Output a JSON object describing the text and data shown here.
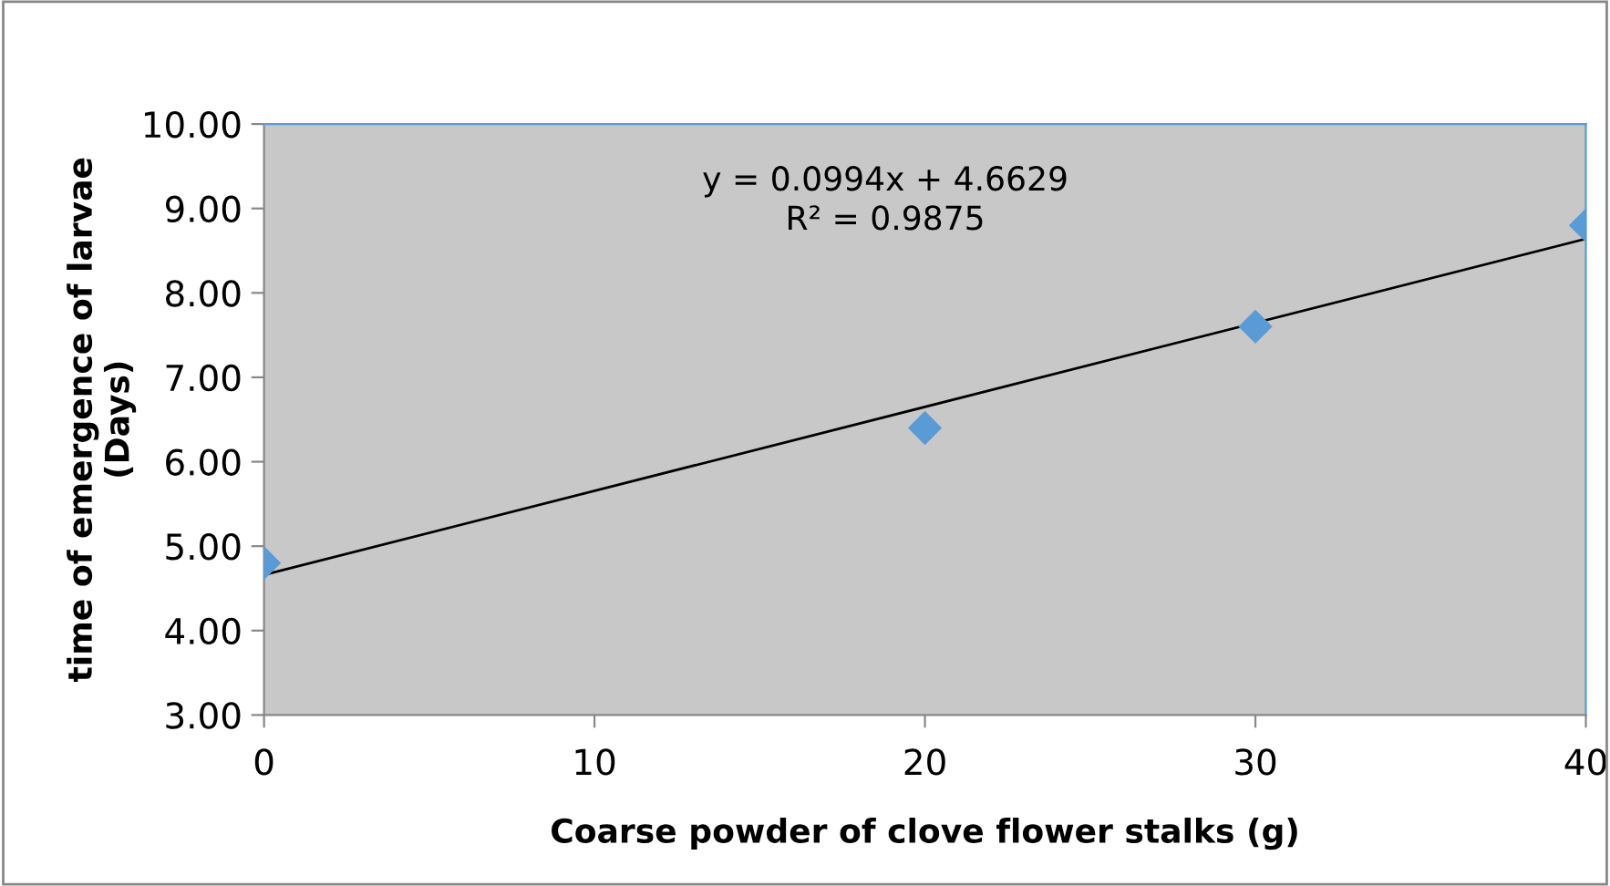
{
  "chart_data": {
    "type": "scatter",
    "xlabel": "Coarse powder of clove flower stalks (g)",
    "ylabel": "time of emergence of larvae\n(Days)",
    "x": [
      0,
      20,
      30,
      40
    ],
    "series": [
      {
        "color": "#5b9bd5",
        "marker": "diamond",
        "values": [
          4.8,
          6.4,
          7.6,
          8.8
        ]
      },
      {
        "type": "line",
        "color": "#000000",
        "marker": "none",
        "line_style": "solid",
        "x": [
          0,
          40
        ],
        "values": [
          4.66,
          8.64
        ]
      }
    ],
    "xlim": [
      0,
      40
    ],
    "xticks": [
      0,
      10,
      20,
      30,
      40
    ],
    "ylim": [
      3,
      10
    ],
    "yticks": [
      {
        "value": 3,
        "label": "3.00"
      },
      {
        "value": 4,
        "label": "4.00"
      },
      {
        "value": 5,
        "label": "5.00"
      },
      {
        "value": 6,
        "label": "6.00"
      },
      {
        "value": 7,
        "label": "7.00"
      },
      {
        "value": 8,
        "label": "8.00"
      },
      {
        "value": 9,
        "label": "9.00"
      },
      {
        "value": 10,
        "label": "10.00"
      }
    ],
    "grid": false,
    "legend": false,
    "annotations": [
      "y = 0.0994x + 4.6629\nR² = 0.9875"
    ]
  }
}
